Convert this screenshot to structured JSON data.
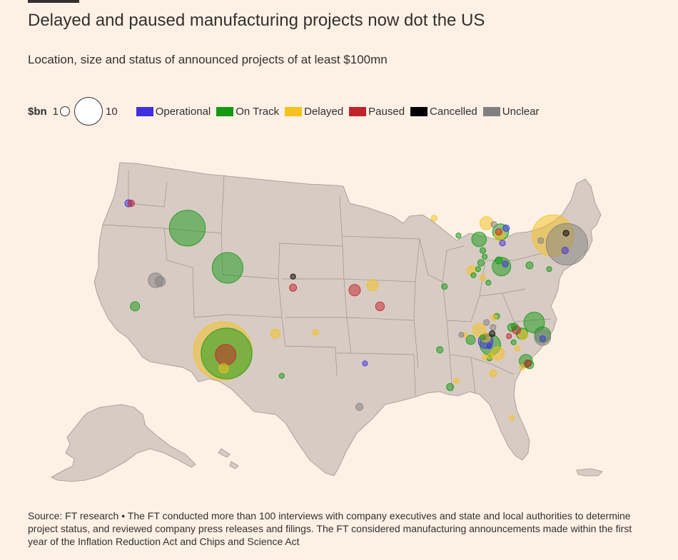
{
  "header": {
    "title": "Delayed and paused manufacturing projects now dot the US",
    "subtitle": "Location, size and status of announced projects of at least $100mn"
  },
  "legend": {
    "unit": "$bn",
    "size_small_label": "1",
    "size_large_label": "10",
    "statuses": [
      {
        "key": "operational",
        "label": "Operational",
        "color": "#3f2fe0"
      },
      {
        "key": "on_track",
        "label": "On Track",
        "color": "#139a13"
      },
      {
        "key": "delayed",
        "label": "Delayed",
        "color": "#f4c21c"
      },
      {
        "key": "paused",
        "label": "Paused",
        "color": "#c2222a"
      },
      {
        "key": "cancelled",
        "label": "Cancelled",
        "color": "#000000"
      },
      {
        "key": "unclear",
        "label": "Unclear",
        "color": "#808080"
      }
    ]
  },
  "map": {
    "land_color": "#d8cbc4",
    "border_color": "#a0928b"
  },
  "chart_data": {
    "type": "map-bubble",
    "size_unit": "$bn",
    "projects": [
      {
        "status": "operational",
        "lon": -122.5,
        "lat": 45.6,
        "value": 0.6
      },
      {
        "status": "paused",
        "lon": -122.2,
        "lat": 45.6,
        "value": 0.5
      },
      {
        "status": "on_track",
        "lon": -116.2,
        "lat": 43.6,
        "value": 15
      },
      {
        "status": "on_track",
        "lon": -121.8,
        "lat": 37.3,
        "value": 1
      },
      {
        "status": "unclear",
        "lon": -119.6,
        "lat": 39.4,
        "value": 2.5
      },
      {
        "status": "unclear",
        "lon": -119.1,
        "lat": 39.3,
        "value": 1.2
      },
      {
        "status": "on_track",
        "lon": -111.9,
        "lat": 40.4,
        "value": 11
      },
      {
        "status": "cancelled",
        "lon": -104.9,
        "lat": 39.7,
        "value": 0.3
      },
      {
        "status": "paused",
        "lon": -104.9,
        "lat": 38.8,
        "value": 0.6
      },
      {
        "status": "delayed",
        "lon": -112.4,
        "lat": 33.7,
        "value": 40
      },
      {
        "status": "on_track",
        "lon": -112.0,
        "lat": 33.5,
        "value": 30
      },
      {
        "status": "paused",
        "lon": -112.1,
        "lat": 33.4,
        "value": 5
      },
      {
        "status": "delayed",
        "lon": -112.3,
        "lat": 32.3,
        "value": 1
      },
      {
        "status": "delayed",
        "lon": -106.8,
        "lat": 35.1,
        "value": 1
      },
      {
        "status": "on_track",
        "lon": -106.1,
        "lat": 31.7,
        "value": 0.3
      },
      {
        "status": "delayed",
        "lon": -102.5,
        "lat": 35.2,
        "value": 0.4
      },
      {
        "status": "paused",
        "lon": -98.3,
        "lat": 38.6,
        "value": 1.5
      },
      {
        "status": "delayed",
        "lon": -96.4,
        "lat": 39.0,
        "value": 1.5
      },
      {
        "status": "paused",
        "lon": -95.6,
        "lat": 37.3,
        "value": 0.9
      },
      {
        "status": "operational",
        "lon": -97.2,
        "lat": 32.7,
        "value": 0.3
      },
      {
        "status": "unclear",
        "lon": -97.8,
        "lat": 29.2,
        "value": 0.6
      },
      {
        "status": "delayed",
        "lon": -89.8,
        "lat": 44.4,
        "value": 0.4
      },
      {
        "status": "on_track",
        "lon": -87.2,
        "lat": 43.0,
        "value": 0.3
      },
      {
        "status": "delayed",
        "lon": -84.2,
        "lat": 44.0,
        "value": 2
      },
      {
        "status": "unclear",
        "lon": -83.4,
        "lat": 43.9,
        "value": 0.4
      },
      {
        "status": "on_track",
        "lon": -82.7,
        "lat": 43.3,
        "value": 3
      },
      {
        "status": "on_track",
        "lon": -85.0,
        "lat": 42.7,
        "value": 2.5
      },
      {
        "status": "paused",
        "lon": -82.9,
        "lat": 43.3,
        "value": 0.5
      },
      {
        "status": "delayed",
        "lon": -82.8,
        "lat": 43.0,
        "value": 1.2
      },
      {
        "status": "operational",
        "lon": -82.1,
        "lat": 43.6,
        "value": 0.5
      },
      {
        "status": "operational",
        "lon": -82.5,
        "lat": 42.4,
        "value": 0.4
      },
      {
        "status": "on_track",
        "lon": -84.6,
        "lat": 41.8,
        "value": 0.4
      },
      {
        "status": "on_track",
        "lon": -84.4,
        "lat": 41.3,
        "value": 0.3
      },
      {
        "status": "on_track",
        "lon": -84.8,
        "lat": 40.8,
        "value": 0.5
      },
      {
        "status": "on_track",
        "lon": -82.6,
        "lat": 40.5,
        "value": 4
      },
      {
        "status": "operational",
        "lon": -82.2,
        "lat": 40.7,
        "value": 0.4
      },
      {
        "status": "on_track",
        "lon": -82.9,
        "lat": 41.0,
        "value": 0.6
      },
      {
        "status": "delayed",
        "lon": -85.8,
        "lat": 40.2,
        "value": 1
      },
      {
        "status": "on_track",
        "lon": -85.1,
        "lat": 40.3,
        "value": 0.3
      },
      {
        "status": "on_track",
        "lon": -85.6,
        "lat": 39.8,
        "value": 0.3
      },
      {
        "status": "on_track",
        "lon": -88.7,
        "lat": 38.9,
        "value": 0.4
      },
      {
        "status": "delayed",
        "lon": -84.6,
        "lat": 39.6,
        "value": 0.4
      },
      {
        "status": "on_track",
        "lon": -84.0,
        "lat": 39.2,
        "value": 0.3
      },
      {
        "status": "on_track",
        "lon": -79.6,
        "lat": 40.6,
        "value": 0.6
      },
      {
        "status": "delayed",
        "lon": -77.1,
        "lat": 43.0,
        "value": 20
      },
      {
        "status": "unclear",
        "lon": -78.4,
        "lat": 42.6,
        "value": 0.4
      },
      {
        "status": "unclear",
        "lon": -75.6,
        "lat": 42.3,
        "value": 20
      },
      {
        "status": "cancelled",
        "lon": -75.7,
        "lat": 43.2,
        "value": 0.4
      },
      {
        "status": "operational",
        "lon": -75.8,
        "lat": 41.8,
        "value": 0.5
      },
      {
        "status": "on_track",
        "lon": -77.5,
        "lat": 40.3,
        "value": 0.3
      },
      {
        "status": "on_track",
        "lon": -83.1,
        "lat": 36.5,
        "value": 0.4
      },
      {
        "status": "delayed",
        "lon": -85.0,
        "lat": 35.4,
        "value": 2
      },
      {
        "status": "delayed",
        "lon": -83.4,
        "lat": 36.4,
        "value": 0.4
      },
      {
        "status": "unclear",
        "lon": -84.2,
        "lat": 36.0,
        "value": 0.4
      },
      {
        "status": "unclear",
        "lon": -83.5,
        "lat": 35.6,
        "value": 0.4
      },
      {
        "status": "delayed",
        "lon": -86.5,
        "lat": 35.0,
        "value": 0.3
      },
      {
        "status": "unclear",
        "lon": -86.9,
        "lat": 35.0,
        "value": 0.3
      },
      {
        "status": "on_track",
        "lon": -85.9,
        "lat": 34.6,
        "value": 1
      },
      {
        "status": "on_track",
        "lon": -84.6,
        "lat": 34.8,
        "value": 0.3
      },
      {
        "status": "cancelled",
        "lon": -83.6,
        "lat": 35.1,
        "value": 0.4
      },
      {
        "status": "operational",
        "lon": -84.3,
        "lat": 34.5,
        "value": 2.5
      },
      {
        "status": "on_track",
        "lon": -83.8,
        "lat": 34.2,
        "value": 5
      },
      {
        "status": "operational",
        "lon": -83.9,
        "lat": 34.1,
        "value": 0.3
      },
      {
        "status": "delayed",
        "lon": -83.0,
        "lat": 33.5,
        "value": 2
      },
      {
        "status": "on_track",
        "lon": -83.9,
        "lat": 33.1,
        "value": 0.3
      },
      {
        "status": "delayed",
        "lon": -84.3,
        "lat": 34.8,
        "value": 1
      },
      {
        "status": "delayed",
        "lon": -83.8,
        "lat": 33.3,
        "value": 0.3
      },
      {
        "status": "on_track",
        "lon": -89.2,
        "lat": 33.8,
        "value": 0.5
      },
      {
        "status": "on_track",
        "lon": -79.1,
        "lat": 36.0,
        "value": 5
      },
      {
        "status": "on_track",
        "lon": -78.2,
        "lat": 35.0,
        "value": 3
      },
      {
        "status": "unclear",
        "lon": -78.2,
        "lat": 34.8,
        "value": 3
      },
      {
        "status": "operational",
        "lon": -78.2,
        "lat": 34.7,
        "value": 0.4
      },
      {
        "status": "on_track",
        "lon": -80.4,
        "lat": 35.1,
        "value": 1.5
      },
      {
        "status": "delayed",
        "lon": -80.3,
        "lat": 35.0,
        "value": 1
      },
      {
        "status": "on_track",
        "lon": -81.5,
        "lat": 35.6,
        "value": 0.8
      },
      {
        "status": "paused",
        "lon": -81.0,
        "lat": 35.4,
        "value": 0.8
      },
      {
        "status": "on_track",
        "lon": -81.2,
        "lat": 35.7,
        "value": 0.5
      },
      {
        "status": "paused",
        "lon": -81.8,
        "lat": 34.9,
        "value": 0.3
      },
      {
        "status": "on_track",
        "lon": -81.3,
        "lat": 34.4,
        "value": 0.3
      },
      {
        "status": "delayed",
        "lon": -80.9,
        "lat": 33.9,
        "value": 0.3
      },
      {
        "status": "on_track",
        "lon": -80.0,
        "lat": 32.9,
        "value": 2
      },
      {
        "status": "paused",
        "lon": -79.8,
        "lat": 32.7,
        "value": 0.6
      },
      {
        "status": "on_track",
        "lon": -79.6,
        "lat": 32.6,
        "value": 0.8
      },
      {
        "status": "delayed",
        "lon": -80.4,
        "lat": 32.4,
        "value": 0.3
      },
      {
        "status": "delayed",
        "lon": -83.5,
        "lat": 31.9,
        "value": 0.6
      },
      {
        "status": "delayed",
        "lon": -84.4,
        "lat": 33.2,
        "value": 0.3
      },
      {
        "status": "on_track",
        "lon": -88.1,
        "lat": 30.8,
        "value": 0.6
      },
      {
        "status": "delayed",
        "lon": -87.4,
        "lat": 31.3,
        "value": 0.3
      },
      {
        "status": "delayed",
        "lon": -81.5,
        "lat": 28.3,
        "value": 0.3
      }
    ]
  },
  "footer": {
    "source": "Source: FT research • The FT conducted more than 100 interviews with company executives and state and local authorities to determine project status, and reviewed company press releases and filings. The FT considered manufacturing announcements made within the first year of the Inflation Reduction Act and Chips and Science Act"
  }
}
